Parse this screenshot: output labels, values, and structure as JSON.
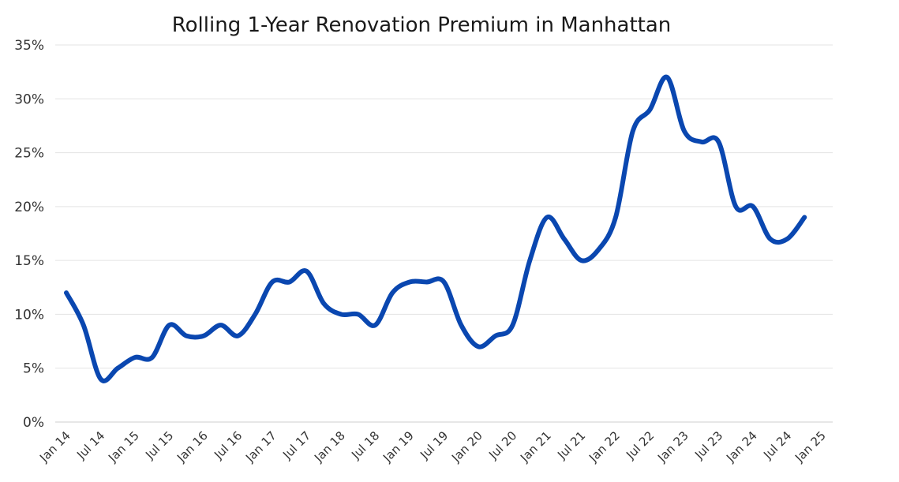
{
  "chart_data": {
    "type": "line",
    "title": "Rolling 1-Year Renovation Premium in Manhattan",
    "xlabel": "",
    "ylabel": "",
    "ylim": [
      0,
      35
    ],
    "yticks": [
      "0%",
      "5%",
      "10%",
      "15%",
      "20%",
      "25%",
      "30%",
      "35%"
    ],
    "x_tick_labels": [
      "Jan 14",
      "Jul 14",
      "Jan 15",
      "Jul 15",
      "Jan 16",
      "Jul 16",
      "Jan 17",
      "Jul 17",
      "Jan 18",
      "Jul 18",
      "Jan 19",
      "Jul 19",
      "Jan 20",
      "Jul 20",
      "Jan 21",
      "Jul 21",
      "Jan 22",
      "Jul 22",
      "Jan 23",
      "Jul 23",
      "Jan 24",
      "Jul 24",
      "Jan 25"
    ],
    "grid": true,
    "legend": "none",
    "line_color": "#0a47b0",
    "series": [
      {
        "x": [
          "Jan 14",
          "Apr 14",
          "Jul 14",
          "Oct 14",
          "Jan 15",
          "Apr 15",
          "Jul 15",
          "Oct 15",
          "Jan 16",
          "Apr 16",
          "Jul 16",
          "Oct 16",
          "Jan 17",
          "Apr 17",
          "Jul 17",
          "Oct 17",
          "Jan 18",
          "Apr 18",
          "Jul 18",
          "Oct 18",
          "Jan 19",
          "Apr 19",
          "Jul 19",
          "Oct 19",
          "Jan 20",
          "Apr 20",
          "Jul 20",
          "Oct 20",
          "Jan 21",
          "Apr 21",
          "Jul 21",
          "Oct 21",
          "Jan 22",
          "Apr 22",
          "Jul 22",
          "Oct 22",
          "Jan 23",
          "Apr 23",
          "Jul 23",
          "Oct 23",
          "Jan 24",
          "Apr 24",
          "Jul 24",
          "Oct 24"
        ],
        "values": [
          12,
          9,
          4,
          5,
          6,
          6,
          9,
          8,
          8,
          9,
          8,
          10,
          13,
          13,
          14,
          11,
          10,
          10,
          9,
          12,
          13,
          13,
          13,
          9,
          7,
          8,
          9,
          15,
          19,
          17,
          15,
          16,
          19,
          27,
          29,
          32,
          27,
          26,
          26,
          20,
          20,
          17,
          17,
          19
        ]
      }
    ]
  }
}
